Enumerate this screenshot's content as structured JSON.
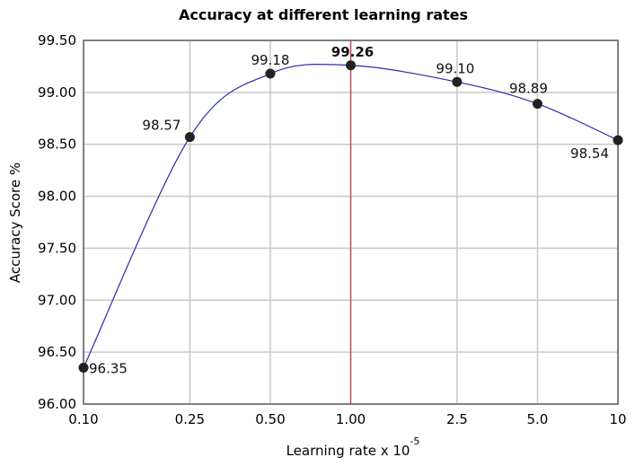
{
  "chart_data": {
    "type": "line",
    "title": "Accuracy at different learning rates",
    "xlabel": "Learning rate x 10",
    "xlabel_superscript": "-5",
    "ylabel": "Accuracy Score %",
    "x_scale": "log",
    "categories": [
      "0.10",
      "0.25",
      "0.50",
      "1.00",
      "2.5",
      "5.0",
      "10"
    ],
    "x": [
      0.1,
      0.25,
      0.5,
      1.0,
      2.5,
      5.0,
      10
    ],
    "values": [
      96.35,
      98.57,
      99.18,
      99.26,
      99.1,
      98.89,
      98.54
    ],
    "data_labels": [
      "96.35",
      "98.57",
      "99.18",
      "99.26",
      "99.10",
      "98.89",
      "98.54"
    ],
    "highlight": {
      "x": 1.0,
      "label": "99.26",
      "line_color": "#c0404a"
    },
    "ylim": [
      96.0,
      99.5
    ],
    "y_ticks": [
      "96.00",
      "96.50",
      "97.00",
      "97.50",
      "98.00",
      "98.50",
      "99.00",
      "99.50"
    ],
    "grid": true,
    "legend": null,
    "line_color": "#2a2ab0",
    "marker_color": "#222222"
  }
}
